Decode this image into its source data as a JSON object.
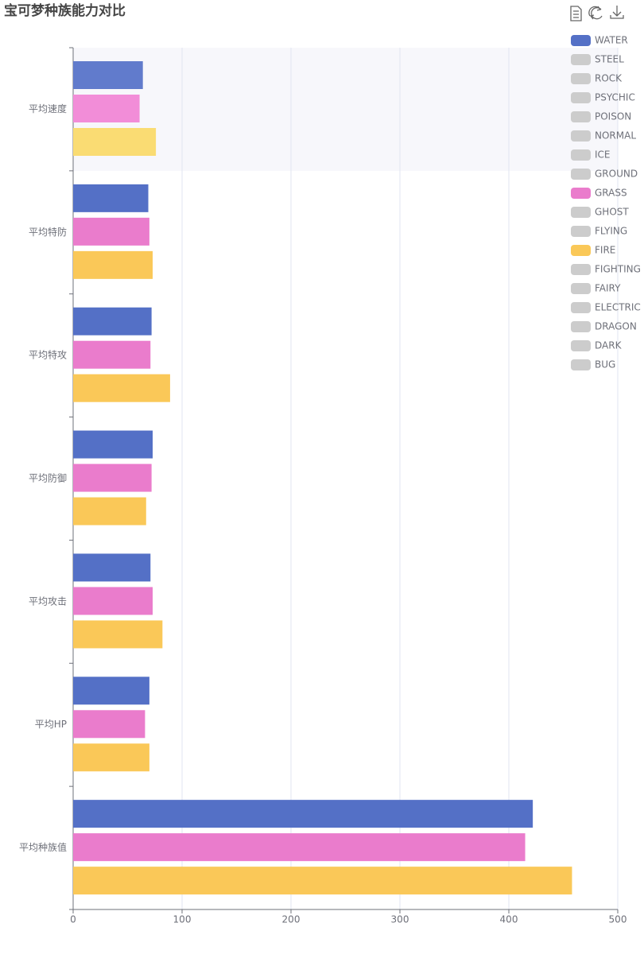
{
  "chart_data": {
    "type": "hbar",
    "title": "宝可梦种族能力对比",
    "categories": [
      "平均种族值",
      "平均HP",
      "平均攻击",
      "平均防御",
      "平均特攻",
      "平均特防",
      "平均速度"
    ],
    "series": [
      {
        "name": "WATER",
        "color": "#5470c6",
        "values": [
          422,
          70,
          71,
          73,
          72,
          69,
          64
        ]
      },
      {
        "name": "GRASS",
        "color": "#ea7ccc",
        "values": [
          415,
          66,
          73,
          72,
          71,
          70,
          61
        ]
      },
      {
        "name": "FIRE",
        "color": "#fac858",
        "values": [
          458,
          70,
          82,
          67,
          89,
          73,
          76
        ]
      }
    ],
    "legend": [
      "WATER",
      "STEEL",
      "ROCK",
      "PSYCHIC",
      "POISON",
      "NORMAL",
      "ICE",
      "GROUND",
      "GRASS",
      "GHOST",
      "FLYING",
      "FIRE",
      "FIGHTING",
      "FAIRY",
      "ELECTRIC",
      "DRAGON",
      "DARK",
      "BUG"
    ],
    "inactive_color": "#cccccc",
    "highlighted_category": 6,
    "xlim": [
      0,
      500
    ],
    "xticks": [
      0,
      100,
      200,
      300,
      400,
      500
    ],
    "grid": true
  }
}
